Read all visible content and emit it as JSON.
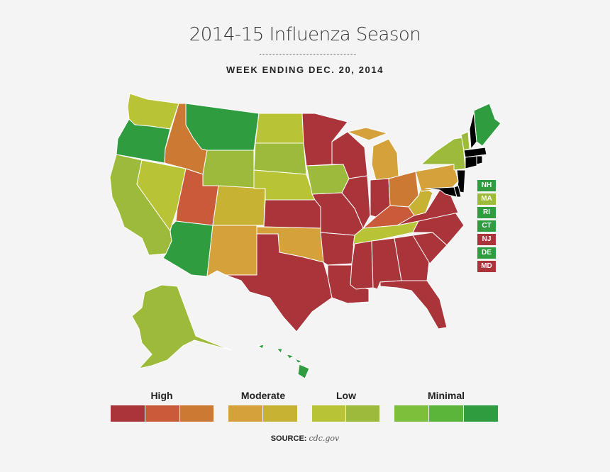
{
  "title": "2014-15 Influenza Season",
  "subtitle": "WEEK ENDING DEC. 20, 2014",
  "colors": {
    "high_1": "#a9343a",
    "high_2": "#c95a3a",
    "high_3": "#cc7a33",
    "moderate_1": "#d4a13a",
    "moderate_2": "#c8b233",
    "low_1": "#b9c336",
    "low_2": "#9dbb3a",
    "minimal_1": "#7bbf3a",
    "minimal_2": "#5ab53a",
    "minimal_3": "#2e9c3f"
  },
  "states": {
    "WA": "low_1",
    "OR": "minimal_3",
    "CA": "low_2",
    "NV": "low_1",
    "ID": "high_3",
    "MT": "minimal_3",
    "WY": "low_2",
    "UT": "high_2",
    "AZ": "minimal_3",
    "CO": "moderate_2",
    "NM": "moderate_1",
    "ND": "low_1",
    "SD": "low_2",
    "NE": "low_1",
    "KS": "high_1",
    "OK": "moderate_1",
    "TX": "high_1",
    "MN": "high_1",
    "IA": "low_2",
    "MO": "high_1",
    "AR": "high_1",
    "LA": "high_1",
    "WI": "high_1",
    "IL": "high_1",
    "MI": "moderate_1",
    "IN": "high_1",
    "OH": "high_3",
    "KY": "high_2",
    "TN": "low_1",
    "MS": "high_1",
    "AL": "high_1",
    "GA": "high_1",
    "FL": "high_1",
    "SC": "high_1",
    "NC": "high_1",
    "VA": "high_1",
    "WV": "moderate_2",
    "PA": "moderate_1",
    "NY": "low_2",
    "VT": "low_2",
    "ME": "minimal_3",
    "AK": "low_2",
    "HI": "minimal_3"
  },
  "small_states": [
    {
      "abbr": "NH",
      "level": "minimal_3"
    },
    {
      "abbr": "MA",
      "level": "low_2"
    },
    {
      "abbr": "RI",
      "level": "minimal_3"
    },
    {
      "abbr": "CT",
      "level": "minimal_3"
    },
    {
      "abbr": "NJ",
      "level": "high_1"
    },
    {
      "abbr": "DE",
      "level": "minimal_3"
    },
    {
      "abbr": "MD",
      "level": "high_1"
    }
  ],
  "legend": {
    "high_label": "High",
    "moderate_label": "Moderate",
    "low_label": "Low",
    "minimal_label": "Minimal"
  },
  "source": {
    "label": "SOURCE:",
    "value": "cdc.gov"
  }
}
